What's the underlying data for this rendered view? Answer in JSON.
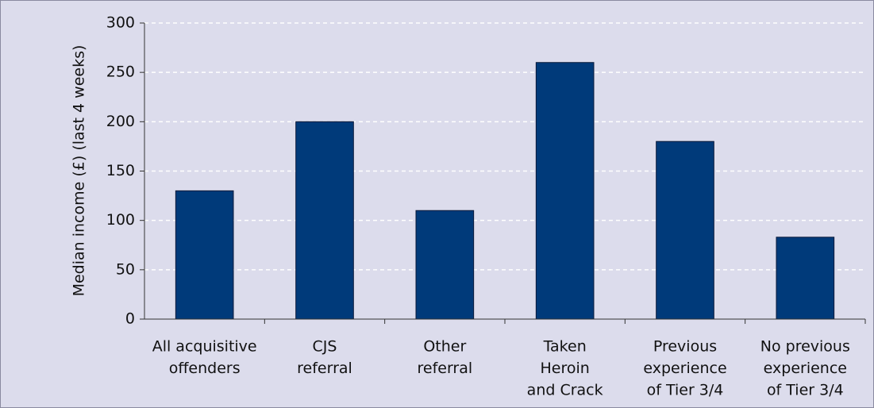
{
  "chart_data": {
    "type": "bar",
    "y_label": "Median income (£) (last 4 weeks)",
    "categories": [
      [
        "All acquisitive",
        "offenders"
      ],
      [
        "CJS",
        "referral"
      ],
      [
        "Other",
        "referral"
      ],
      [
        "Taken",
        "Heroin",
        "and Crack"
      ],
      [
        "Previous",
        "experience",
        "of Tier 3/4"
      ],
      [
        "No previous",
        "experience",
        "of Tier 3/4"
      ]
    ],
    "values": [
      130,
      200,
      110,
      260,
      180,
      83
    ],
    "color": "#003a7a",
    "ylim": [
      0,
      300
    ],
    "yticks": [
      0,
      50,
      100,
      150,
      200,
      250,
      300
    ],
    "grid": true
  }
}
